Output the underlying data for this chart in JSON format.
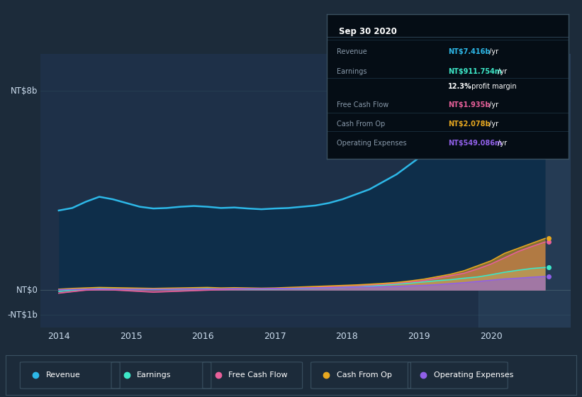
{
  "background_color": "#1c2b3a",
  "plot_bg_color": "#1e3048",
  "title": "Sep 30 2020",
  "ylim": [
    -1500000000.0,
    9500000000.0
  ],
  "xlim": [
    2013.75,
    2021.1
  ],
  "xticks": [
    2014,
    2015,
    2016,
    2017,
    2018,
    2019,
    2020
  ],
  "grid_color": "#263d52",
  "revenue_color": "#2db8e8",
  "earnings_color": "#3de8c8",
  "fcf_color": "#e8609a",
  "cashfromop_color": "#e8a820",
  "opex_color": "#9060e8",
  "revenue_fill_color": "#0d3050",
  "background_color2": "#1c2b3a",
  "revenue": [
    3.2,
    3.3,
    3.55,
    3.75,
    3.65,
    3.5,
    3.35,
    3.28,
    3.3,
    3.35,
    3.38,
    3.35,
    3.3,
    3.32,
    3.28,
    3.25,
    3.28,
    3.3,
    3.35,
    3.4,
    3.5,
    3.65,
    3.85,
    4.05,
    4.35,
    4.65,
    5.05,
    5.45,
    5.95,
    6.3,
    6.6,
    6.8,
    7.0,
    7.15,
    7.25,
    7.35,
    7.416
  ],
  "earnings": [
    -0.05,
    0.0,
    0.04,
    0.07,
    0.06,
    0.05,
    0.04,
    0.03,
    0.04,
    0.05,
    0.06,
    0.07,
    0.05,
    0.06,
    0.05,
    0.04,
    0.05,
    0.06,
    0.07,
    0.08,
    0.1,
    0.11,
    0.13,
    0.16,
    0.2,
    0.24,
    0.28,
    0.33,
    0.38,
    0.42,
    0.48,
    0.53,
    0.62,
    0.72,
    0.8,
    0.87,
    0.912
  ],
  "fcf": [
    -0.12,
    -0.06,
    0.0,
    0.02,
    0.01,
    -0.02,
    -0.05,
    -0.08,
    -0.06,
    -0.04,
    -0.02,
    0.0,
    0.02,
    0.04,
    0.06,
    0.05,
    0.06,
    0.08,
    0.1,
    0.12,
    0.14,
    0.17,
    0.19,
    0.21,
    0.24,
    0.28,
    0.33,
    0.38,
    0.48,
    0.58,
    0.68,
    0.85,
    1.05,
    1.3,
    1.55,
    1.75,
    1.935
  ],
  "cashfromop": [
    0.04,
    0.07,
    0.09,
    0.11,
    0.1,
    0.09,
    0.08,
    0.07,
    0.08,
    0.09,
    0.1,
    0.11,
    0.09,
    0.1,
    0.09,
    0.08,
    0.09,
    0.11,
    0.13,
    0.15,
    0.17,
    0.19,
    0.21,
    0.24,
    0.27,
    0.31,
    0.37,
    0.44,
    0.54,
    0.64,
    0.78,
    0.98,
    1.18,
    1.48,
    1.68,
    1.88,
    2.078
  ],
  "opex": [
    0.02,
    0.03,
    0.04,
    0.05,
    0.04,
    0.04,
    0.04,
    0.04,
    0.04,
    0.05,
    0.05,
    0.05,
    0.05,
    0.06,
    0.06,
    0.06,
    0.07,
    0.07,
    0.08,
    0.09,
    0.1,
    0.11,
    0.12,
    0.13,
    0.14,
    0.15,
    0.17,
    0.19,
    0.22,
    0.26,
    0.3,
    0.35,
    0.4,
    0.45,
    0.48,
    0.52,
    0.549
  ],
  "legend_items": [
    {
      "label": "Revenue",
      "color": "#2db8e8"
    },
    {
      "label": "Earnings",
      "color": "#3de8c8"
    },
    {
      "label": "Free Cash Flow",
      "color": "#e8609a"
    },
    {
      "label": "Cash From Op",
      "color": "#e8a820"
    },
    {
      "label": "Operating Expenses",
      "color": "#9060e8"
    }
  ]
}
